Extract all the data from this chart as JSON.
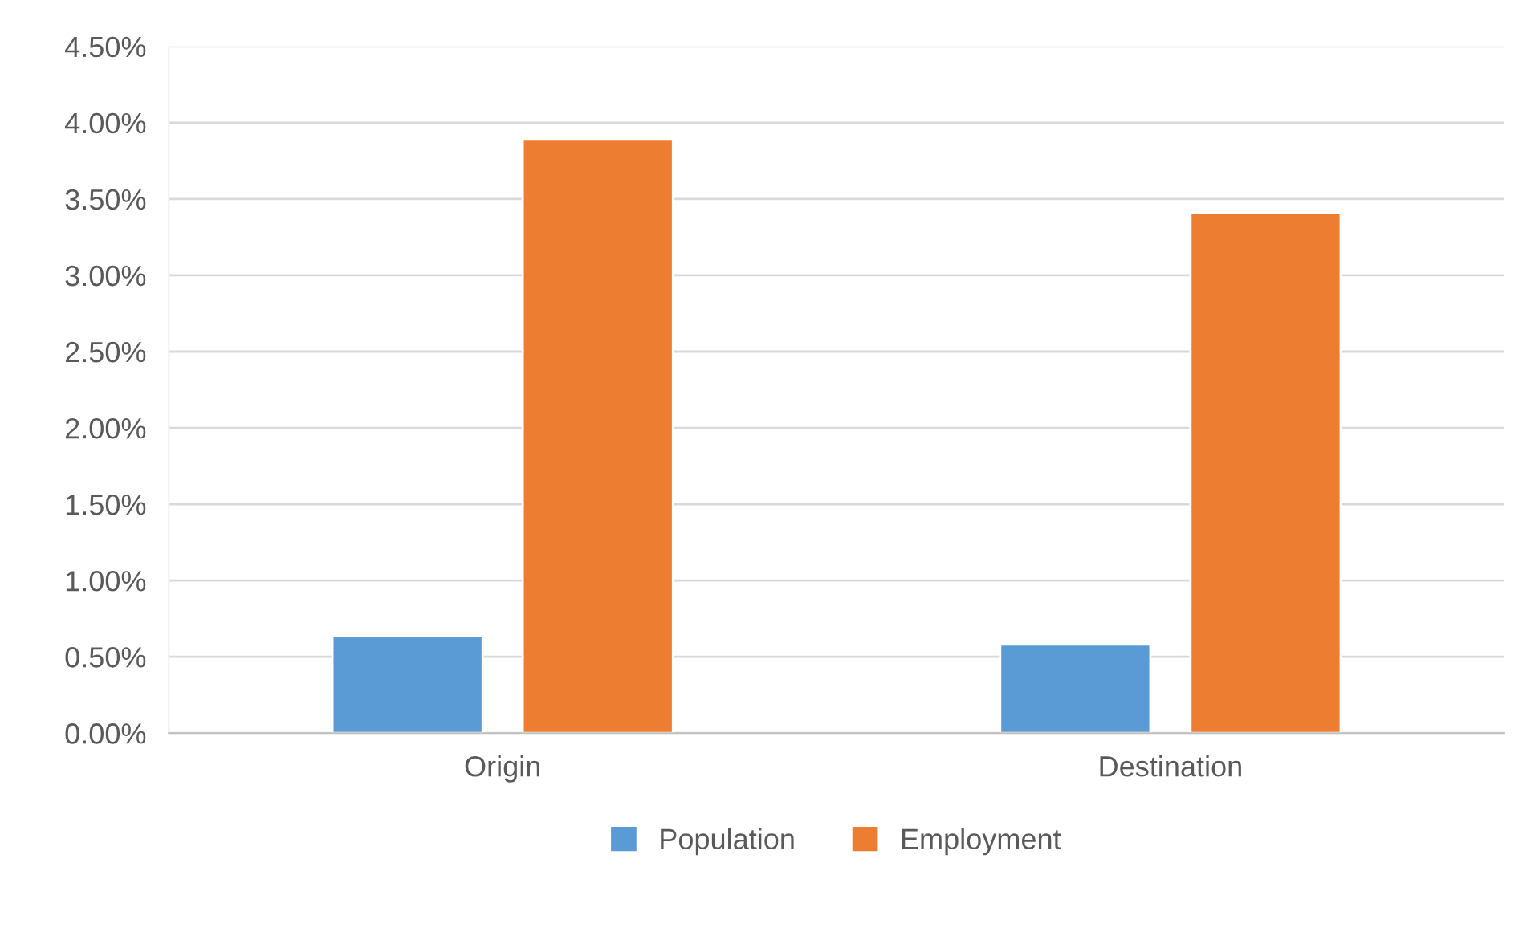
{
  "chart_data": {
    "type": "bar",
    "categories": [
      "Origin",
      "Destination"
    ],
    "series": [
      {
        "name": "Population",
        "color": "#5b9bd5",
        "values": [
          0.64,
          0.58
        ]
      },
      {
        "name": "Employment",
        "color": "#ed7d31",
        "values": [
          3.89,
          3.41
        ]
      }
    ],
    "ylim": [
      0,
      4.5
    ],
    "yticks": [
      {
        "value": 0,
        "label": "0.00%"
      },
      {
        "value": 0.5,
        "label": "0.50%"
      },
      {
        "value": 1,
        "label": "1.00%"
      },
      {
        "value": 1.5,
        "label": "1.50%"
      },
      {
        "value": 2,
        "label": "2.00%"
      },
      {
        "value": 2.5,
        "label": "2.50%"
      },
      {
        "value": 3,
        "label": "3.00%"
      },
      {
        "value": 3.5,
        "label": "3.50%"
      },
      {
        "value": 4,
        "label": "4.00%"
      },
      {
        "value": 4.5,
        "label": "4.50%"
      }
    ],
    "grid": "y",
    "legend": "bottom"
  }
}
